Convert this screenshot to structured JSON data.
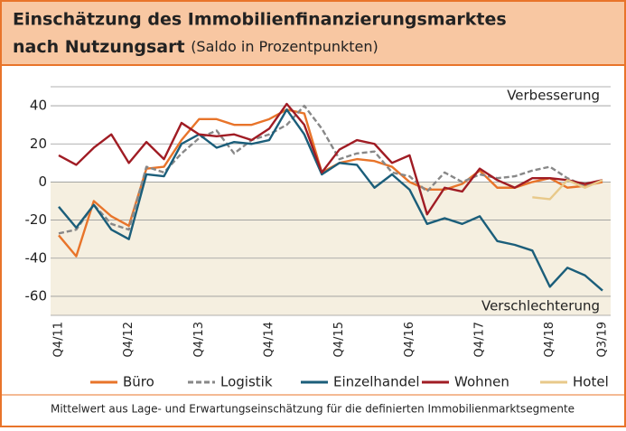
{
  "chart_data": {
    "type": "line",
    "title": "Einschätzung des Immobilienfinanzierungsmarktes",
    "title_line2": "nach Nutzungsart",
    "subtitle": "(Saldo in Prozentpunkten)",
    "annotations": [
      "Verbesserung",
      "Verschlechterung"
    ],
    "footnote": "Mittelwert aus Lage- und Erwartungseinschätzung für die definierten Immobilienmarktsegmente",
    "categories": [
      "Q4/11",
      null,
      null,
      null,
      "Q4/12",
      null,
      null,
      null,
      "Q4/13",
      null,
      null,
      null,
      "Q4/14",
      null,
      null,
      null,
      "Q4/15",
      null,
      null,
      null,
      "Q4/16",
      null,
      null,
      null,
      "Q4/17",
      null,
      null,
      null,
      "Q4/18",
      null,
      null,
      "Q3/19"
    ],
    "ylim": [
      -70,
      50
    ],
    "yticks": [
      40,
      20,
      0,
      -20,
      -40,
      -60
    ],
    "grid": true,
    "series": [
      {
        "name": "Büro",
        "color": "#e8742a",
        "dash": false,
        "values": [
          -28,
          -39,
          -10,
          -18,
          -23,
          7,
          8,
          22,
          33,
          33,
          30,
          30,
          33,
          38,
          36,
          5,
          10,
          12,
          11,
          8,
          0,
          -4,
          -4,
          -1,
          6,
          -3,
          -3,
          0,
          2,
          -3,
          -2,
          0
        ]
      },
      {
        "name": "Logistik",
        "color": "#888888",
        "dash": true,
        "values": [
          -27,
          -25,
          -12,
          -22,
          -25,
          8,
          5,
          15,
          23,
          27,
          15,
          22,
          25,
          30,
          40,
          28,
          12,
          15,
          16,
          5,
          3,
          -5,
          5,
          0,
          4,
          2,
          3,
          6,
          8,
          2,
          -2,
          1
        ]
      },
      {
        "name": "Einzelhandel",
        "color": "#1b5e7a",
        "dash": false,
        "values": [
          -13,
          -24,
          -12,
          -25,
          -30,
          4,
          3,
          20,
          25,
          18,
          21,
          20,
          22,
          38,
          25,
          4,
          10,
          9,
          -3,
          4,
          -4,
          -22,
          -19,
          -22,
          -18,
          -31,
          -33,
          -36,
          -55,
          -45,
          -49,
          -57
        ]
      },
      {
        "name": "Wohnen",
        "color": "#a01c24",
        "dash": false,
        "values": [
          14,
          9,
          18,
          25,
          10,
          21,
          12,
          31,
          25,
          24,
          25,
          22,
          28,
          41,
          30,
          5,
          17,
          22,
          20,
          10,
          14,
          -17,
          -3,
          -5,
          7,
          1,
          -3,
          2,
          2,
          1,
          -1,
          1
        ]
      },
      {
        "name": "Hotel",
        "color": "#e8c98a",
        "dash": false,
        "values": [
          null,
          null,
          null,
          null,
          null,
          null,
          null,
          null,
          null,
          null,
          null,
          null,
          null,
          null,
          null,
          null,
          null,
          null,
          null,
          null,
          null,
          null,
          null,
          null,
          null,
          null,
          null,
          -8,
          -9,
          1,
          -3,
          1
        ]
      }
    ]
  }
}
